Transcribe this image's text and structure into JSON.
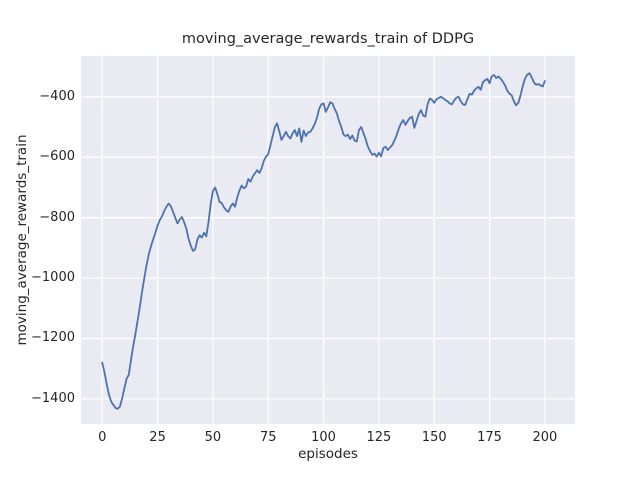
{
  "chart_data": {
    "type": "line",
    "title": "moving_average_rewards_train of DDPG",
    "xlabel": "episodes",
    "ylabel": "moving_average_rewards_train",
    "grid": true,
    "legend_position": "none",
    "line_color": "#4c72b0",
    "plot_background": "#eaeaf2",
    "grid_color": "#ffffff",
    "text_color": "#262626",
    "x_start": 0,
    "x_step": 1,
    "xlim": [
      -9.6,
      213.6
    ],
    "ylim": [
      -1483,
      -265
    ],
    "x_ticks": [
      0,
      25,
      50,
      75,
      100,
      125,
      150,
      175,
      200
    ],
    "y_ticks": [
      -400,
      -600,
      -800,
      -1000,
      -1200,
      -1400
    ],
    "x_tick_labels": [
      "0",
      "25",
      "50",
      "75",
      "100",
      "125",
      "150",
      "175",
      "200"
    ],
    "y_tick_labels": [
      "−400",
      "−600",
      "−800",
      "−1000",
      "−1200",
      "−1400"
    ],
    "values": [
      -1280,
      -1312,
      -1350,
      -1385,
      -1408,
      -1420,
      -1430,
      -1433,
      -1425,
      -1398,
      -1365,
      -1333,
      -1320,
      -1270,
      -1225,
      -1185,
      -1140,
      -1095,
      -1045,
      -1000,
      -958,
      -922,
      -895,
      -872,
      -850,
      -826,
      -808,
      -796,
      -778,
      -764,
      -753,
      -762,
      -781,
      -800,
      -819,
      -806,
      -798,
      -815,
      -836,
      -870,
      -893,
      -910,
      -905,
      -872,
      -858,
      -866,
      -850,
      -862,
      -815,
      -755,
      -712,
      -700,
      -722,
      -748,
      -752,
      -766,
      -776,
      -781,
      -763,
      -753,
      -764,
      -733,
      -710,
      -694,
      -703,
      -697,
      -672,
      -681,
      -664,
      -653,
      -643,
      -652,
      -637,
      -612,
      -598,
      -590,
      -560,
      -530,
      -500,
      -488,
      -515,
      -543,
      -530,
      -516,
      -530,
      -538,
      -521,
      -510,
      -530,
      -505,
      -549,
      -512,
      -530,
      -518,
      -516,
      -505,
      -490,
      -470,
      -440,
      -425,
      -422,
      -450,
      -435,
      -418,
      -422,
      -440,
      -455,
      -480,
      -500,
      -525,
      -530,
      -525,
      -540,
      -528,
      -545,
      -548,
      -510,
      -500,
      -520,
      -540,
      -565,
      -580,
      -592,
      -588,
      -598,
      -585,
      -597,
      -570,
      -565,
      -576,
      -568,
      -560,
      -545,
      -527,
      -505,
      -488,
      -477,
      -493,
      -480,
      -470,
      -466,
      -503,
      -480,
      -457,
      -444,
      -462,
      -466,
      -425,
      -406,
      -410,
      -420,
      -408,
      -404,
      -400,
      -405,
      -410,
      -415,
      -422,
      -425,
      -412,
      -403,
      -400,
      -415,
      -425,
      -427,
      -408,
      -390,
      -393,
      -380,
      -372,
      -367,
      -377,
      -352,
      -345,
      -341,
      -355,
      -332,
      -328,
      -338,
      -333,
      -340,
      -350,
      -362,
      -380,
      -390,
      -395,
      -415,
      -428,
      -420,
      -395,
      -365,
      -340,
      -327,
      -322,
      -335,
      -352,
      -360,
      -358,
      -362,
      -366,
      -348
    ]
  }
}
